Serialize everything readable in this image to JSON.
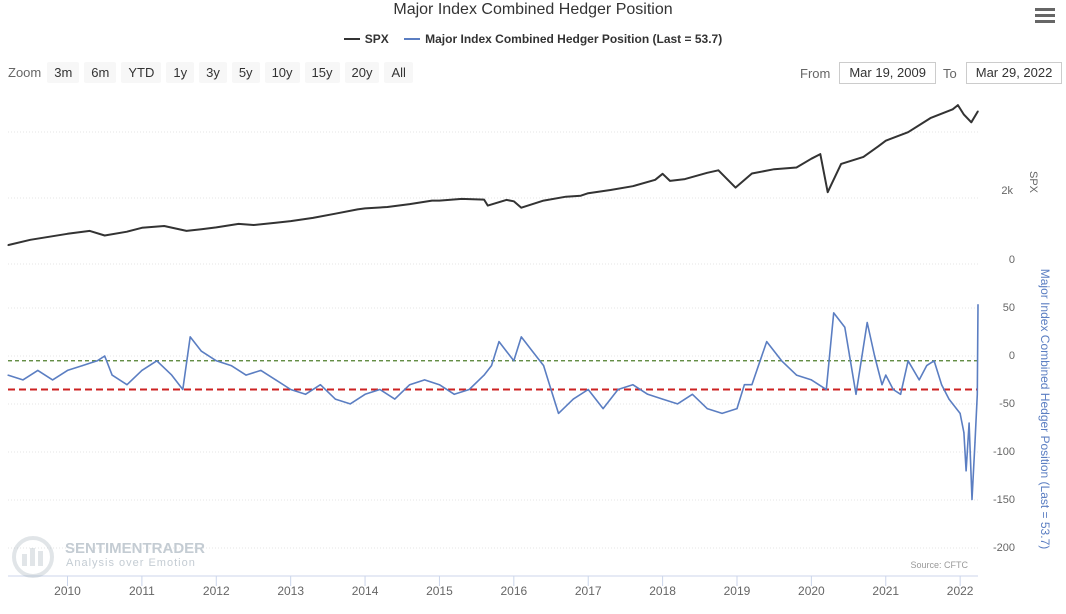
{
  "header": {
    "title": "Major Index Combined Hedger Position",
    "menu_icon": "hamburger-menu-icon"
  },
  "legend": {
    "items": [
      {
        "label": "SPX",
        "color": "#333333"
      },
      {
        "label": "Major Index Combined Hedger Position (Last = 53.7)",
        "color": "#5b7ec2"
      }
    ]
  },
  "zoom": {
    "label": "Zoom",
    "buttons": [
      "3m",
      "6m",
      "YTD",
      "1y",
      "3y",
      "5y",
      "10y",
      "15y",
      "20y",
      "All"
    ]
  },
  "range": {
    "from_label": "From",
    "from_value": "Mar 19, 2009",
    "to_label": "To",
    "to_value": "Mar 29, 2022"
  },
  "watermark": {
    "brand": "SENTIMENTRADER",
    "tagline": "Analysis over Emotion"
  },
  "source": "Source: CFTC",
  "chart_data": {
    "type": "line",
    "x_range": [
      "2009-03-19",
      "2022-03-29"
    ],
    "x_ticks": [
      "2010",
      "2011",
      "2012",
      "2013",
      "2014",
      "2015",
      "2016",
      "2017",
      "2018",
      "2019",
      "2020",
      "2021",
      "2022"
    ],
    "top_axis": {
      "label": "SPX",
      "ticks": [
        "2k"
      ]
    },
    "bottom_axis": {
      "label": "Major Index Combined Hedger Position (Last = 53.7)",
      "ticks": [
        "0",
        "50",
        "0",
        "-50",
        "-100",
        "-150",
        "-200"
      ],
      "ylim": [
        -200,
        50
      ]
    },
    "reference_lines": [
      {
        "value": -5,
        "color": "#4f7d2b",
        "style": "dashed"
      },
      {
        "value": -35,
        "color": "#cc2222",
        "style": "dashed"
      }
    ],
    "series": [
      {
        "name": "SPX",
        "color": "#333333",
        "x": [
          2009.2,
          2009.5,
          2010.0,
          2010.3,
          2010.5,
          2010.8,
          2011.0,
          2011.3,
          2011.6,
          2011.8,
          2012.0,
          2012.3,
          2012.5,
          2012.8,
          2013.0,
          2013.3,
          2013.6,
          2013.9,
          2014.0,
          2014.3,
          2014.6,
          2014.9,
          2015.0,
          2015.3,
          2015.6,
          2015.65,
          2015.9,
          2016.0,
          2016.1,
          2016.4,
          2016.7,
          2016.9,
          2017.0,
          2017.3,
          2017.6,
          2017.9,
          2018.0,
          2018.1,
          2018.3,
          2018.6,
          2018.75,
          2018.98,
          2019.2,
          2019.5,
          2019.8,
          2020.0,
          2020.12,
          2020.22,
          2020.4,
          2020.7,
          2020.9,
          2021.0,
          2021.3,
          2021.6,
          2021.9,
          2021.97,
          2022.05,
          2022.15,
          2022.24
        ],
        "values": [
          800,
          950,
          1120,
          1200,
          1070,
          1180,
          1290,
          1340,
          1200,
          1250,
          1300,
          1400,
          1370,
          1430,
          1480,
          1570,
          1690,
          1810,
          1840,
          1880,
          1960,
          2060,
          2060,
          2110,
          2090,
          1920,
          2080,
          2040,
          1860,
          2060,
          2170,
          2200,
          2270,
          2360,
          2470,
          2650,
          2820,
          2620,
          2670,
          2850,
          2920,
          2430,
          2830,
          2950,
          3000,
          3250,
          3380,
          2300,
          3100,
          3300,
          3600,
          3760,
          4000,
          4400,
          4650,
          4770,
          4500,
          4280,
          4600
        ]
      },
      {
        "name": "Major Index Combined Hedger Position (Last = 53.7)",
        "color": "#5b7ec2",
        "x": [
          2009.2,
          2009.4,
          2009.6,
          2009.8,
          2010.0,
          2010.2,
          2010.4,
          2010.5,
          2010.6,
          2010.8,
          2011.0,
          2011.2,
          2011.4,
          2011.55,
          2011.65,
          2011.8,
          2012.0,
          2012.2,
          2012.4,
          2012.6,
          2012.8,
          2013.0,
          2013.2,
          2013.4,
          2013.6,
          2013.8,
          2014.0,
          2014.2,
          2014.4,
          2014.6,
          2014.8,
          2015.0,
          2015.2,
          2015.4,
          2015.6,
          2015.7,
          2015.8,
          2015.9,
          2016.0,
          2016.1,
          2016.25,
          2016.4,
          2016.5,
          2016.6,
          2016.8,
          2017.0,
          2017.2,
          2017.4,
          2017.6,
          2017.8,
          2018.0,
          2018.2,
          2018.4,
          2018.6,
          2018.8,
          2019.0,
          2019.1,
          2019.2,
          2019.4,
          2019.6,
          2019.8,
          2020.0,
          2020.1,
          2020.2,
          2020.3,
          2020.45,
          2020.6,
          2020.75,
          2020.85,
          2020.95,
          2021.0,
          2021.1,
          2021.2,
          2021.3,
          2021.45,
          2021.55,
          2021.65,
          2021.75,
          2021.85,
          2021.9,
          2021.95,
          2022.0,
          2022.05,
          2022.08,
          2022.12,
          2022.16,
          2022.2,
          2022.23,
          2022.24
        ],
        "values": [
          -20,
          -25,
          -15,
          -25,
          -15,
          -10,
          -5,
          0,
          -20,
          -30,
          -15,
          -5,
          -20,
          -35,
          20,
          5,
          -5,
          -10,
          -20,
          -15,
          -25,
          -35,
          -40,
          -30,
          -45,
          -50,
          -40,
          -35,
          -45,
          -30,
          -25,
          -30,
          -40,
          -35,
          -20,
          -10,
          15,
          5,
          -5,
          20,
          5,
          -10,
          -35,
          -60,
          -45,
          -35,
          -55,
          -35,
          -30,
          -40,
          -45,
          -50,
          -40,
          -55,
          -60,
          -55,
          -30,
          -30,
          15,
          -5,
          -20,
          -25,
          -30,
          -35,
          45,
          30,
          -40,
          35,
          0,
          -30,
          -20,
          -35,
          -40,
          -5,
          -25,
          -10,
          -5,
          -30,
          -45,
          -50,
          -55,
          -60,
          -80,
          -120,
          -70,
          -150,
          -90,
          -40,
          53.7
        ]
      }
    ]
  }
}
